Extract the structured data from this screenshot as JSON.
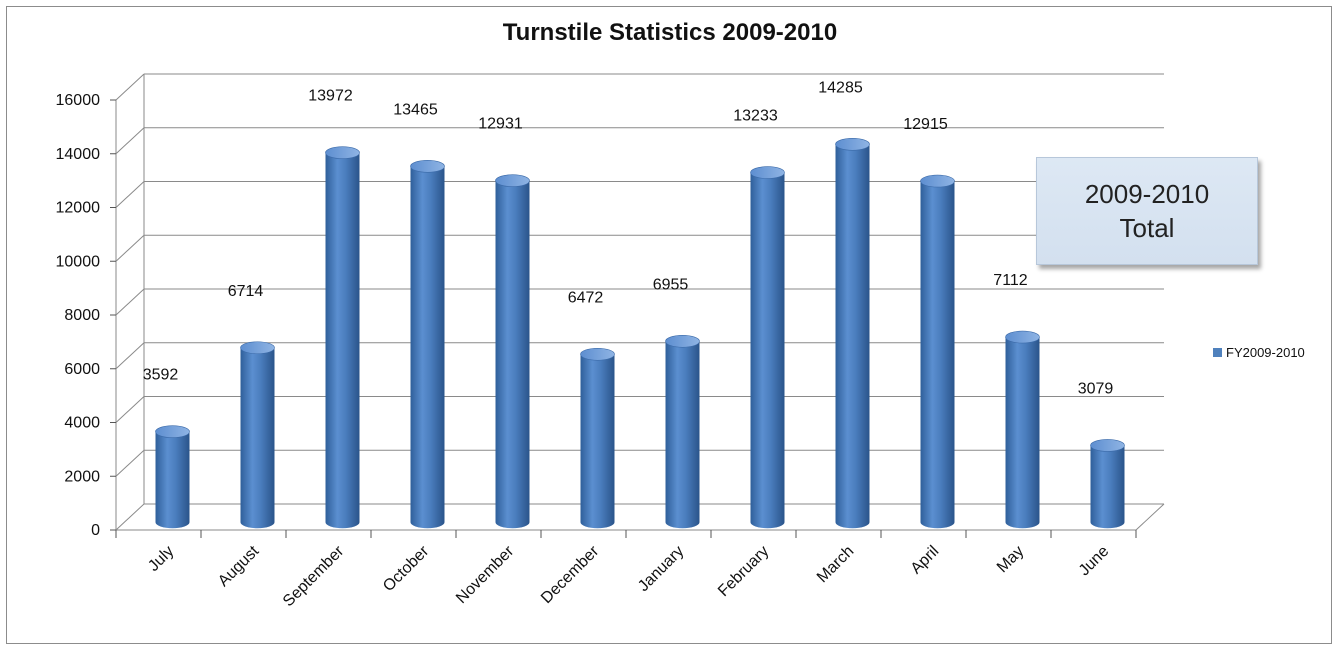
{
  "chart_data": {
    "type": "bar",
    "title": "Turnstile Statistics 2009-2010",
    "categories": [
      "July",
      "August",
      "September",
      "October",
      "November",
      "December",
      "January",
      "February",
      "March",
      "April",
      "May",
      "June"
    ],
    "series": [
      {
        "name": "FY2009-2010",
        "values": [
          3592,
          6714,
          13972,
          13465,
          12931,
          6472,
          6955,
          13233,
          14285,
          12915,
          7112,
          3079
        ]
      }
    ],
    "ylim": [
      0,
      16000
    ],
    "yticks": [
      0,
      2000,
      4000,
      6000,
      8000,
      10000,
      12000,
      14000,
      16000
    ],
    "grid": true,
    "legend_position": "right",
    "bar_color": "#4f81bd",
    "data_labels": true
  },
  "callout": {
    "line1": "2009-2010",
    "line2": "Total"
  }
}
